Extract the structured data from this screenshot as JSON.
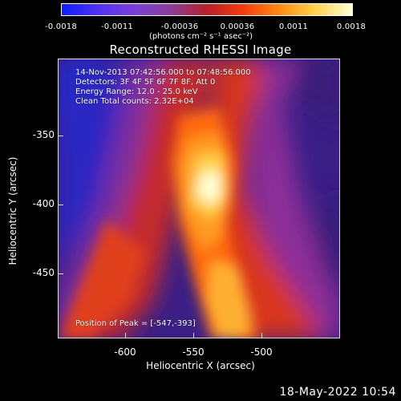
{
  "colorbar": {
    "ticks": [
      "-0.0018",
      "-0.0011",
      "-0.00036",
      "0.00036",
      "0.0011",
      "0.0018"
    ],
    "unit": "(photons cm⁻² s⁻¹ asec⁻²)"
  },
  "title": "Reconstructed RHESSI Image",
  "info": {
    "time_range": "14-Nov-2013 07:42:56.000 to 07:48:56.000",
    "detectors": "Detectors: 3F 4F 5F 6F 7F 8F, Att 0",
    "energy": "Energy Range: 12.0 - 25.0 keV",
    "clean": "Clean    Total counts: 2.32E+04",
    "peak": "Position of Peak = [-547,-393]"
  },
  "axes": {
    "x_label": "Heliocentric X (arcsec)",
    "y_label": "Heliocentric Y (arcsec)",
    "x_ticks": [
      "-600",
      "-550",
      "-500"
    ],
    "y_ticks": [
      "-350",
      "-400",
      "-450"
    ]
  },
  "timestamp": "18-May-2022 10:54"
}
